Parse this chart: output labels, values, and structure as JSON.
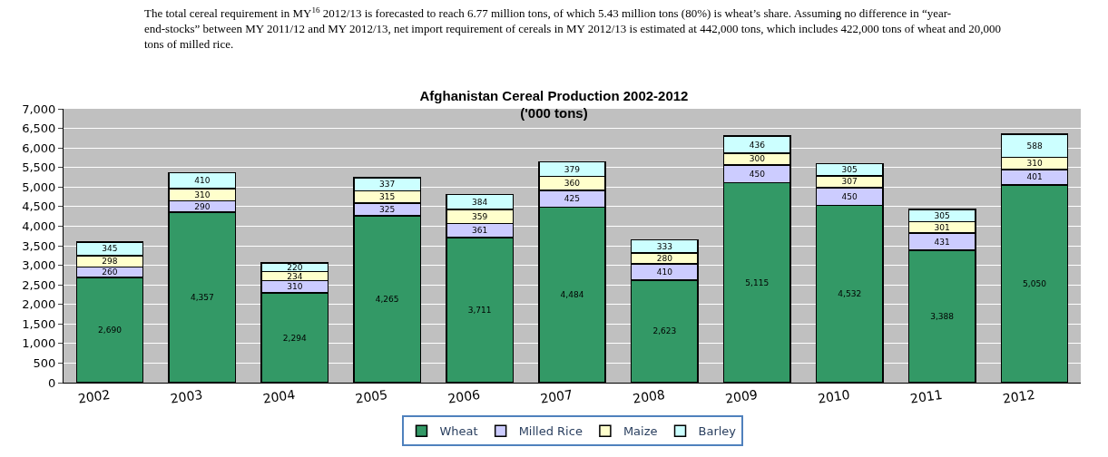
{
  "chart_data": {
    "type": "bar",
    "stacked": true,
    "title": "Afghanistan Cereal Production 2002-2012",
    "subtitle": "('000 tons)",
    "categories": [
      "2002",
      "2003",
      "2004",
      "2005",
      "2006",
      "2007",
      "2008",
      "2009",
      "2010",
      "2011",
      "2012"
    ],
    "series": [
      {
        "name": "Wheat",
        "color": "#339966",
        "values": [
          2690,
          4357,
          2294,
          4265,
          3711,
          4484,
          2623,
          5115,
          4532,
          3388,
          5050
        ],
        "value_labels": [
          "2,690",
          "4,357",
          "2,294",
          "4,265",
          "3,711",
          "4,484",
          "2,623",
          "5,115",
          "4,532",
          "3,388",
          "5,050"
        ]
      },
      {
        "name": "Milled Rice",
        "color": "#ccccff",
        "values": [
          260,
          290,
          310,
          325,
          361,
          425,
          410,
          450,
          450,
          431,
          401
        ],
        "value_labels": [
          "260",
          "290",
          "310",
          "325",
          "361",
          "425",
          "410",
          "450",
          "450",
          "431",
          "401"
        ]
      },
      {
        "name": "Maize",
        "color": "#ffffcc",
        "values": [
          298,
          310,
          234,
          315,
          359,
          360,
          280,
          300,
          307,
          301,
          310
        ],
        "value_labels": [
          "298",
          "310",
          "234",
          "315",
          "359",
          "360",
          "280",
          "300",
          "307",
          "301",
          "310"
        ]
      },
      {
        "name": "Barley",
        "color": "#ccffff",
        "values": [
          345,
          410,
          220,
          337,
          384,
          379,
          333,
          436,
          305,
          305,
          588
        ],
        "value_labels": [
          "345",
          "410",
          "220",
          "337",
          "384",
          "379",
          "333",
          "436",
          "305",
          "305",
          "588"
        ]
      }
    ],
    "ylim": [
      0,
      7000
    ],
    "yticks": [
      {
        "value": 0,
        "label": "0"
      },
      {
        "value": 500,
        "label": "500"
      },
      {
        "value": 1000,
        "label": "1,000"
      },
      {
        "value": 1500,
        "label": "1,500"
      },
      {
        "value": 2000,
        "label": "2,000"
      },
      {
        "value": 2500,
        "label": "2,500"
      },
      {
        "value": 3000,
        "label": "3,000"
      },
      {
        "value": 3500,
        "label": "3,500"
      },
      {
        "value": 4000,
        "label": "4,000"
      },
      {
        "value": 4500,
        "label": "4,500"
      },
      {
        "value": 5000,
        "label": "5,000"
      },
      {
        "value": 5500,
        "label": "5,500"
      },
      {
        "value": 6000,
        "label": "6,000"
      },
      {
        "value": 6500,
        "label": "6,500"
      },
      {
        "value": 7000,
        "label": "7,000"
      }
    ],
    "grid": "y",
    "legend": "bottom",
    "annotations": [
      "The total cereal requirement in MY$^{16}$ 2012/13 is forecasted to reach 6.77 million tons, of which 5.43 million tons (80%) is wheat’s share. Assuming no difference in “year-end-stocks” between MY 2011/12 and MY 2012/13, net import requirement of cereals in MY 2012/13 is estimated at 442,000 tons, which includes 422,000 tons of wheat and 20,000 tons of milled rice."
    ]
  }
}
